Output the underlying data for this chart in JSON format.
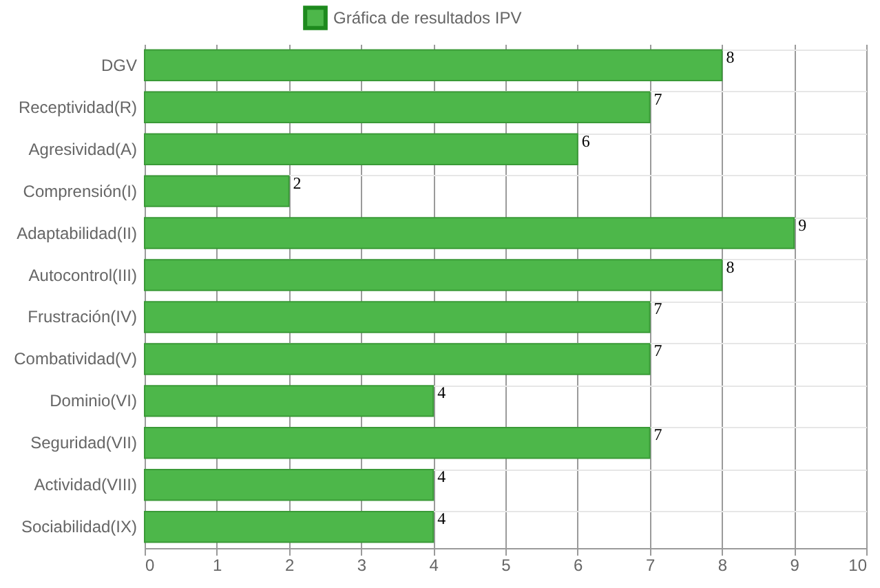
{
  "chart_data": {
    "type": "bar",
    "orientation": "horizontal",
    "categories": [
      "DGV",
      "Receptividad(R)",
      "Agresividad(A)",
      "Comprensión(I)",
      "Adaptabilidad(II)",
      "Autocontrol(III)",
      "Frustración(IV)",
      "Combatividad(V)",
      "Dominio(VI)",
      "Seguridad(VII)",
      "Actividad(VIII)",
      "Sociabilidad(IX)"
    ],
    "series": [
      {
        "name": "Gráfica de resultados IPV",
        "color": "#4db74a",
        "values": [
          8,
          7,
          6,
          2,
          9,
          8,
          7,
          7,
          4,
          7,
          4,
          4
        ]
      }
    ],
    "xlim": [
      0,
      10
    ],
    "xticks": [
      0,
      1,
      2,
      3,
      4,
      5,
      6,
      7,
      8,
      9,
      10
    ],
    "grid": true,
    "legend": "top",
    "data_labels": true
  }
}
